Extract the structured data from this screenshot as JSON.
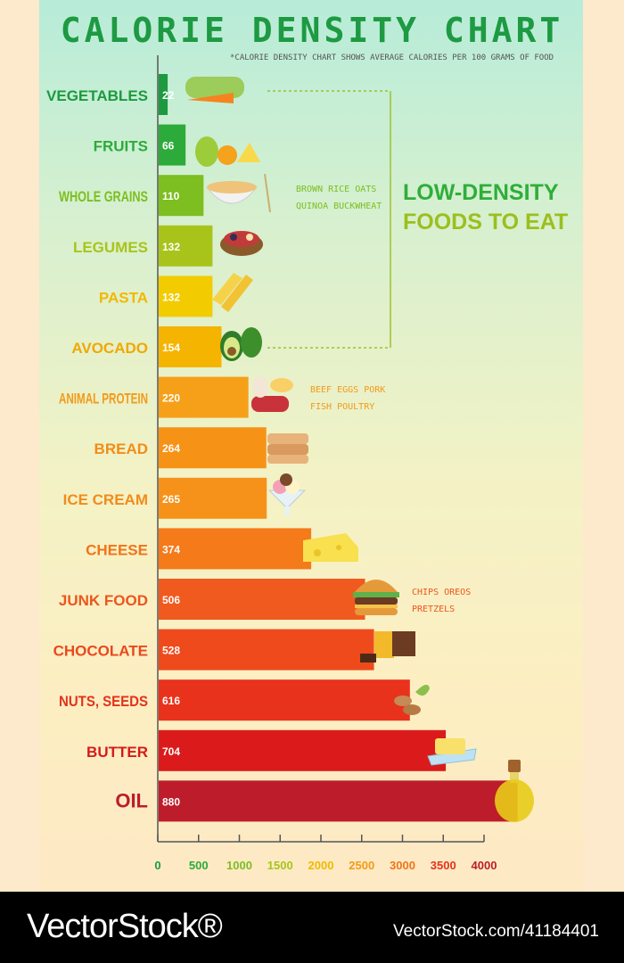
{
  "title": "CALORIE DENSITY CHART",
  "subtitle": "*CALORIE DENSITY CHART SHOWS AVERAGE CALORIES PER 100 GRAMS OF FOOD",
  "low_density": {
    "line1": "LOW-DENSITY",
    "line2": "FOODS TO EAT"
  },
  "annotations": {
    "grains": [
      "BROWN RICE OATS",
      "QUINOA BUCKWHEAT"
    ],
    "protein": [
      "BEEF EGGS PORK",
      "FISH POULTRY"
    ],
    "junk": [
      "CHIPS OREOS",
      "PRETZELS"
    ]
  },
  "footer": {
    "brand": "VectorStock®",
    "id": "VectorStock.com/41184401"
  },
  "chart_data": {
    "type": "bar",
    "orientation": "horizontal",
    "title": "CALORIE DENSITY CHART",
    "categories": [
      "VEGETABLES",
      "FRUITS",
      "WHOLE GRAINS",
      "LEGUMES",
      "PASTA",
      "AVOCADO",
      "ANIMAL PROTEIN",
      "BREAD",
      "ICE CREAM",
      "CHEESE",
      "JUNK FOOD",
      "CHOCOLATE",
      "NUTS, SEEDS",
      "BUTTER",
      "OIL"
    ],
    "values": [
      22,
      66,
      110,
      132,
      132,
      154,
      220,
      264,
      265,
      374,
      506,
      528,
      616,
      704,
      880
    ],
    "colors": [
      "#1d9a3f",
      "#2cab3a",
      "#7dbe20",
      "#a8c41b",
      "#f2cc00",
      "#f5b400",
      "#f6a019",
      "#f69317",
      "#f6921a",
      "#f47a1a",
      "#f05a1e",
      "#ee4a1c",
      "#e9321c",
      "#db1b1b",
      "#bd1d2a"
    ],
    "label_colors": [
      "#1d9a3f",
      "#2cab3a",
      "#7dbe20",
      "#a8c41b",
      "#f2b800",
      "#f0a800",
      "#f39a17",
      "#f28d17",
      "#f28b1a",
      "#f07419",
      "#ec561d",
      "#ea481c",
      "#e4321c",
      "#d51b1b",
      "#bd1d2a"
    ],
    "xticks": [
      "0",
      "500",
      "1000",
      "1500",
      "2000",
      "2500",
      "3000",
      "3500",
      "4000"
    ],
    "xtick_colors": [
      "#1d9a3f",
      "#2cab3a",
      "#7dbe20",
      "#a8c41b",
      "#f2b800",
      "#f39a17",
      "#f07419",
      "#e4321c",
      "#bd1d2a"
    ],
    "xlim": [
      0,
      4000
    ],
    "value_to_axis_ratio": 0.2,
    "grid": false,
    "legend": "none"
  }
}
